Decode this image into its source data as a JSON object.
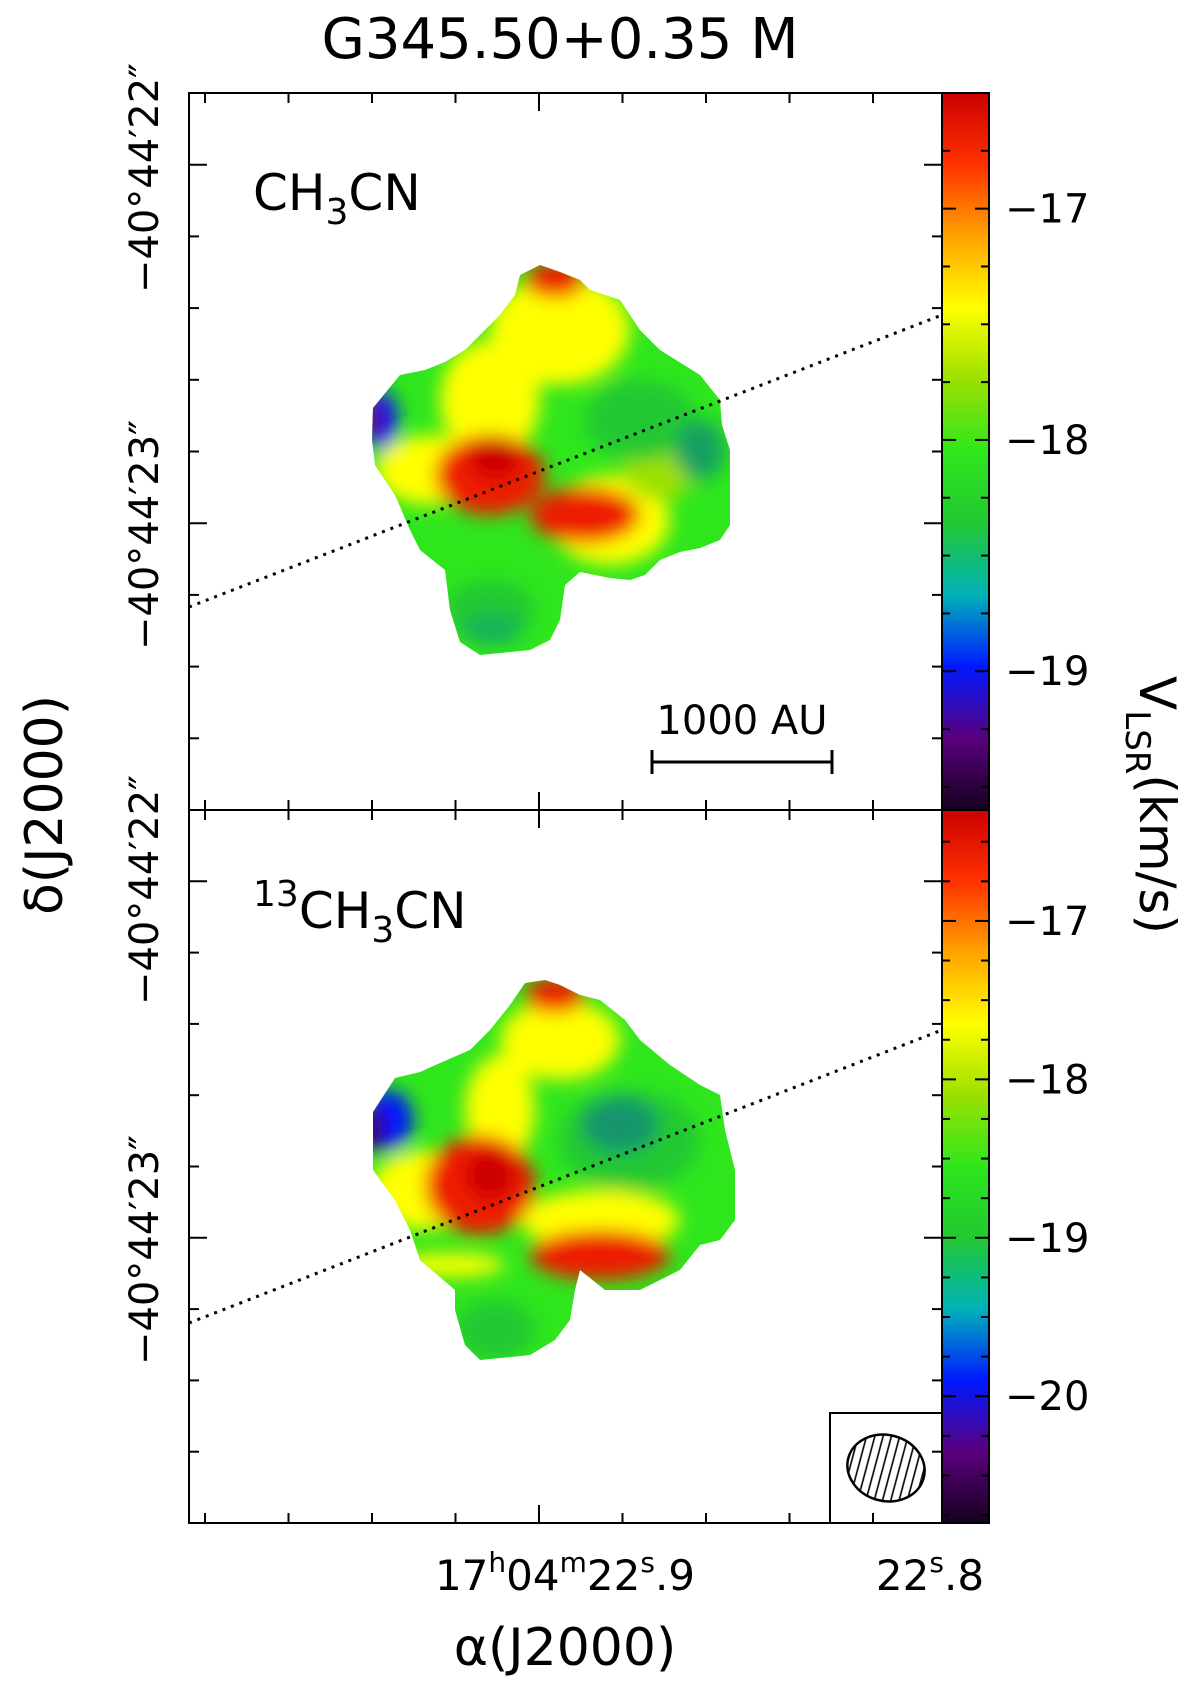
{
  "title": "G345.50+0.35 M",
  "colors": {
    "frame": "#000000",
    "colormap": [
      "#15001f",
      "#5a007d",
      "#0018ff",
      "#00b2b8",
      "#22c832",
      "#2fe61d",
      "#9be000",
      "#ffff00",
      "#ffa300",
      "#ff3200",
      "#cc0000"
    ]
  },
  "x_axis": {
    "label": "α(J2000)",
    "tick_labels": [
      {
        "h": "17",
        "m": "04",
        "s": "22",
        "frac": "9"
      },
      {
        "h": "",
        "m": "",
        "s": "22",
        "frac": "8"
      }
    ]
  },
  "y_axis": {
    "label": "δ(J2000)",
    "tick_labels": [
      "−40°44′22″",
      "−40°44′23″"
    ]
  },
  "colorbar_label": "VLSR(km/s)",
  "colorbar_label_main": "V",
  "colorbar_label_sub": "LSR",
  "colorbar_label_unit": "(km/s)",
  "scale_bar_label": "1000 AU",
  "chart_data": [
    {
      "type": "heatmap",
      "panel": "top",
      "molecule": "CH3CN",
      "molecule_main": "CH",
      "molecule_sub": "3",
      "molecule_tail": "CN",
      "colorbar": {
        "vmin": -19.6,
        "vmax": -16.5,
        "ticks": [
          -17,
          -18,
          -19
        ],
        "tick_labels": [
          "−17",
          "−18",
          "−19"
        ]
      },
      "velocity_range": [
        -19.5,
        -16.6
      ],
      "ylim": [
        "−40°44′21.7″",
        "−40°44′23.7″"
      ],
      "xlim": [
        "17h04m22.95s",
        "17h04m22.80s"
      ],
      "y_tick_labels": [
        "−40°44′22″",
        "−40°44′23″"
      ],
      "dotted_line": true,
      "scale_bar": "1000 AU"
    },
    {
      "type": "heatmap",
      "panel": "bottom",
      "molecule": "13CH3CN",
      "molecule_pre": "13",
      "molecule_main": "CH",
      "molecule_sub": "3",
      "molecule_tail": "CN",
      "colorbar": {
        "vmin": -20.8,
        "vmax": -16.3,
        "ticks": [
          -17,
          -18,
          -19,
          -20
        ],
        "tick_labels": [
          "−17",
          "−18",
          "−19",
          "−20"
        ]
      },
      "velocity_range": [
        -20.7,
        -16.5
      ],
      "ylim": [
        "−40°44′21.7″",
        "−40°44′23.7″"
      ],
      "xlim": [
        "17h04m22.95s",
        "17h04m22.80s"
      ],
      "y_tick_labels": [
        "−40°44′22″",
        "−40°44′23″"
      ],
      "dotted_line": true,
      "beam": true
    }
  ]
}
